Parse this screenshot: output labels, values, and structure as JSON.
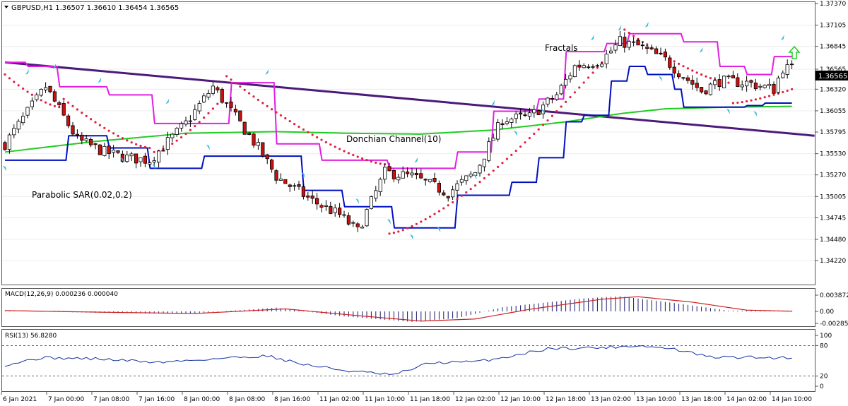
{
  "header": {
    "symbol_info": "GBPUSD,H1  1.36507  1.36610  1.36454  1.36565",
    "macd_label": "MACD(12,26,9) 0.000236 0.000040",
    "rsi_label": "RSI(13) 56.8280"
  },
  "annotations": {
    "fractals": "Fractals",
    "donchian": "Donchian Channel(10)",
    "sar": "Parabolic SAR(0.02,0.2)"
  },
  "colors": {
    "bull": "#ffffff",
    "bear": "#cc1010",
    "wick": "#000000",
    "donchian_upper": "#e020e0",
    "donchian_lower": "#0010c0",
    "ma": "#22cc22",
    "trend": "#4b1a7a",
    "sar": "#e02040",
    "fractal": "#33bbdd",
    "macd_hist": "#1a1a6e",
    "macd_signal": "#cc2020",
    "rsi": "#1530a0",
    "up_arrow": "#22cc22"
  },
  "chart_data": [
    {
      "type": "candlestick",
      "name": "GBPUSD,H1",
      "ylim": [
        1.3422,
        1.3737
      ],
      "y_ticks": [
        "1.37370",
        "1.37105",
        "1.36845",
        "1.36565",
        "1.36320",
        "1.36055",
        "1.35795",
        "1.35530",
        "1.35270",
        "1.35005",
        "1.34745",
        "1.34480",
        "1.34220"
      ],
      "current_price": "1.36565",
      "x_ticks": [
        "6 Jan 2021",
        "7 Jan 00:00",
        "7 Jan 08:00",
        "7 Jan 16:00",
        "8 Jan 00:00",
        "8 Jan 08:00",
        "8 Jan 16:00",
        "11 Jan 02:00",
        "11 Jan 10:00",
        "11 Jan 18:00",
        "12 Jan 02:00",
        "12 Jan 10:00",
        "12 Jan 18:00",
        "13 Jan 02:00",
        "13 Jan 10:00",
        "13 Jan 18:00",
        "14 Jan 02:00",
        "14 Jan 10:00"
      ],
      "anchors": [
        [
          0,
          1.3565
        ],
        [
          9,
          1.3635
        ],
        [
          16,
          1.357
        ],
        [
          22,
          1.3555
        ],
        [
          27,
          1.3548
        ],
        [
          32,
          1.3545
        ],
        [
          40,
          1.359
        ],
        [
          46,
          1.3635
        ],
        [
          52,
          1.359
        ],
        [
          56,
          1.356
        ],
        [
          60,
          1.3525
        ],
        [
          68,
          1.3495
        ],
        [
          74,
          1.3478
        ],
        [
          78,
          1.3458
        ],
        [
          84,
          1.353
        ],
        [
          90,
          1.3525
        ],
        [
          98,
          1.3505
        ],
        [
          104,
          1.353
        ],
        [
          110,
          1.3595
        ],
        [
          116,
          1.3598
        ],
        [
          122,
          1.3625
        ],
        [
          126,
          1.366
        ],
        [
          132,
          1.3668
        ],
        [
          136,
          1.369
        ],
        [
          140,
          1.3685
        ],
        [
          146,
          1.3668
        ],
        [
          150,
          1.3648
        ],
        [
          154,
          1.363
        ],
        [
          158,
          1.3642
        ],
        [
          164,
          1.364
        ],
        [
          170,
          1.3632
        ],
        [
          172,
          1.3658
        ],
        [
          174,
          1.3657
        ]
      ],
      "donchian_upper_steps": [
        [
          0,
          1.3665
        ],
        [
          5,
          1.366
        ],
        [
          12,
          1.3635
        ],
        [
          23,
          1.3625
        ],
        [
          33,
          1.359
        ],
        [
          50,
          1.364
        ],
        [
          60,
          1.3565
        ],
        [
          70,
          1.3545
        ],
        [
          85,
          1.3535
        ],
        [
          100,
          1.3555
        ],
        [
          108,
          1.3605
        ],
        [
          118,
          1.362
        ],
        [
          124,
          1.3678
        ],
        [
          133,
          1.3688
        ],
        [
          138,
          1.37
        ],
        [
          150,
          1.369
        ],
        [
          158,
          1.366
        ],
        [
          164,
          1.365
        ],
        [
          170,
          1.3672
        ]
      ],
      "donchian_lower_steps": [
        [
          0,
          1.3545
        ],
        [
          14,
          1.3575
        ],
        [
          23,
          1.356
        ],
        [
          32,
          1.3535
        ],
        [
          44,
          1.355
        ],
        [
          56,
          1.355
        ],
        [
          66,
          1.3508
        ],
        [
          75,
          1.3488
        ],
        [
          86,
          1.3462
        ],
        [
          100,
          1.3502
        ],
        [
          112,
          1.3518
        ],
        [
          118,
          1.3548
        ],
        [
          124,
          1.3592
        ],
        [
          128,
          1.36
        ],
        [
          134,
          1.3642
        ],
        [
          138,
          1.366
        ],
        [
          142,
          1.365
        ],
        [
          148,
          1.3632
        ],
        [
          150,
          1.361
        ],
        [
          164,
          1.3612
        ],
        [
          168,
          1.3615
        ]
      ],
      "ma_points": [
        [
          0,
          1.3555
        ],
        [
          20,
          1.3568
        ],
        [
          40,
          1.3578
        ],
        [
          60,
          1.358
        ],
        [
          76,
          1.3578
        ],
        [
          92,
          1.3577
        ],
        [
          108,
          1.3582
        ],
        [
          124,
          1.3592
        ],
        [
          136,
          1.3602
        ],
        [
          146,
          1.3608
        ],
        [
          160,
          1.361
        ],
        [
          174,
          1.3611
        ]
      ],
      "trendline": [
        [
          0,
          1.3665
        ],
        [
          179,
          1.3575
        ]
      ],
      "sar_segments": [
        {
          "from": 0,
          "to": 12,
          "start": 1.365,
          "end": 1.361,
          "side": "above"
        },
        {
          "from": 13,
          "to": 32,
          "start": 1.362,
          "end": 1.356,
          "side": "above"
        },
        {
          "from": 33,
          "to": 48,
          "start": 1.3555,
          "end": 1.362,
          "side": "below"
        },
        {
          "from": 49,
          "to": 84,
          "start": 1.3648,
          "end": 1.354,
          "side": "above"
        },
        {
          "from": 85,
          "to": 136,
          "start": 1.3455,
          "end": 1.369,
          "side": "below"
        },
        {
          "from": 137,
          "to": 160,
          "start": 1.3705,
          "end": 1.364,
          "side": "above"
        },
        {
          "from": 161,
          "to": 174,
          "start": 1.3615,
          "end": 1.3632,
          "side": "below"
        }
      ],
      "fractals_up": [
        [
          5,
          1.3648
        ],
        [
          11,
          1.3655
        ],
        [
          21,
          1.3638
        ],
        [
          36,
          1.3612
        ],
        [
          58,
          1.3648
        ],
        [
          91,
          1.354
        ],
        [
          108,
          1.361
        ],
        [
          130,
          1.369
        ],
        [
          136,
          1.3702
        ],
        [
          142,
          1.3706
        ],
        [
          154,
          1.3675
        ],
        [
          172,
          1.369
        ]
      ],
      "fractals_down": [
        [
          0,
          1.354
        ],
        [
          26,
          1.355
        ],
        [
          33,
          1.3542
        ],
        [
          45,
          1.3566
        ],
        [
          66,
          1.3532
        ],
        [
          78,
          1.35
        ],
        [
          85,
          1.3475
        ],
        [
          90,
          1.3456
        ],
        [
          96,
          1.3465
        ],
        [
          104,
          1.353
        ],
        [
          113,
          1.3583
        ],
        [
          119,
          1.361
        ],
        [
          145,
          1.365
        ],
        [
          160,
          1.361
        ],
        [
          166,
          1.3607
        ]
      ]
    },
    {
      "type": "macd",
      "name": "MACD(12,26,9)",
      "ylim": [
        -0.002851,
        0.003872
      ],
      "y_ticks": [
        "0.003872",
        "0.00",
        "-0.002851"
      ],
      "hist_anchors": [
        [
          0,
          0.0001
        ],
        [
          20,
          -0.0003
        ],
        [
          40,
          -0.0006
        ],
        [
          60,
          0.0009
        ],
        [
          75,
          -0.0012
        ],
        [
          90,
          -0.0025
        ],
        [
          100,
          -0.0016
        ],
        [
          110,
          0.001
        ],
        [
          128,
          0.0031
        ],
        [
          136,
          0.0036
        ],
        [
          148,
          0.002
        ],
        [
          160,
          0.0002
        ],
        [
          174,
          0.0002
        ]
      ],
      "signal_anchors": [
        [
          0,
          0.0002
        ],
        [
          22,
          -0.0002
        ],
        [
          42,
          -0.0005
        ],
        [
          62,
          0.0006
        ],
        [
          78,
          -0.001
        ],
        [
          92,
          -0.0023
        ],
        [
          104,
          -0.0018
        ],
        [
          116,
          0.0005
        ],
        [
          132,
          0.0029
        ],
        [
          140,
          0.0035
        ],
        [
          152,
          0.0022
        ],
        [
          164,
          0.0003
        ],
        [
          174,
          4e-05
        ]
      ]
    },
    {
      "type": "rsi",
      "name": "RSI(13)",
      "ylim": [
        0,
        100
      ],
      "y_ticks": [
        "100",
        "80",
        "20",
        "0"
      ],
      "levels": [
        80,
        20
      ],
      "anchors": [
        [
          0,
          42
        ],
        [
          8,
          56
        ],
        [
          20,
          54
        ],
        [
          34,
          47
        ],
        [
          48,
          55
        ],
        [
          58,
          60
        ],
        [
          66,
          43
        ],
        [
          76,
          30
        ],
        [
          86,
          22
        ],
        [
          94,
          46
        ],
        [
          104,
          48
        ],
        [
          110,
          56
        ],
        [
          120,
          74
        ],
        [
          132,
          76
        ],
        [
          140,
          80
        ],
        [
          148,
          73
        ],
        [
          156,
          57
        ],
        [
          164,
          57
        ],
        [
          170,
          56
        ],
        [
          174,
          57
        ]
      ]
    }
  ]
}
